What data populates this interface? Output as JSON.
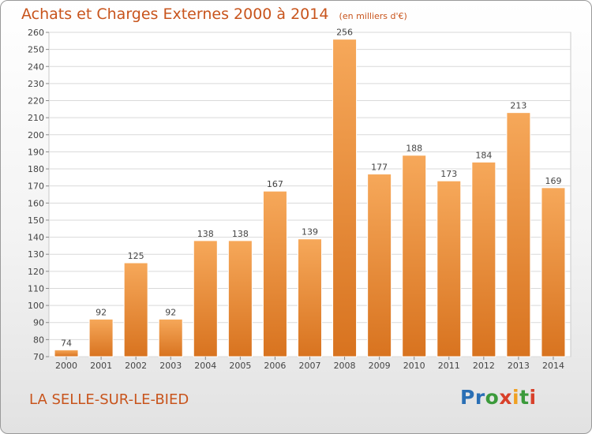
{
  "title": "Achats et Charges Externes 2000 à 2014",
  "unit": "(en milliers d'€)",
  "location": "LA SELLE-SUR-LE-BIED",
  "logo": {
    "text": "Proxiti",
    "letter_colors": [
      "#2a6fb5",
      "#2a6fb5",
      "#3b9a3b",
      "#d8402a",
      "#f0a020",
      "#3b9a3b",
      "#d8402a"
    ]
  },
  "colors": {
    "bar_top": "#f6a85a",
    "bar_bottom": "#d8731f",
    "grid": "#d9d9d9",
    "axis_text": "#444444",
    "title": "#c8541c"
  },
  "chart_data": {
    "type": "bar",
    "title": "Achats et Charges Externes 2000 à 2014",
    "xlabel": "",
    "ylabel": "",
    "categories": [
      "2000",
      "2001",
      "2002",
      "2003",
      "2004",
      "2005",
      "2006",
      "2007",
      "2008",
      "2009",
      "2010",
      "2011",
      "2012",
      "2013",
      "2014"
    ],
    "values": [
      74,
      92,
      125,
      92,
      138,
      138,
      167,
      139,
      256,
      177,
      188,
      173,
      184,
      213,
      169
    ],
    "ylim": [
      70,
      260
    ],
    "ytick_step": 10,
    "grid": true,
    "data_labels": true
  }
}
